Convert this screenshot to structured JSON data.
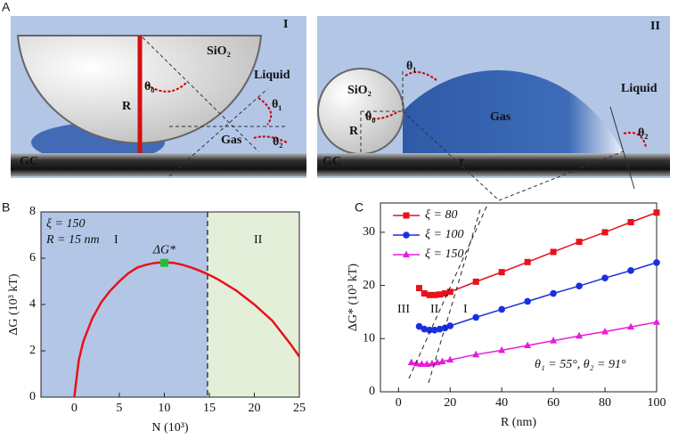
{
  "panel_a": {
    "label": "A",
    "left": {
      "numeral": "I",
      "solid": "SiO₂",
      "theta0": "θ₀",
      "radius": "R",
      "liquid": "Liquid",
      "theta1": "θ₁",
      "gas": "Gas",
      "theta2": "θ₂",
      "substrate": "GC"
    },
    "right": {
      "numeral": "II",
      "theta1": "θ₁",
      "solid": "SiO₂",
      "theta0": "θ₀",
      "radius": "R",
      "gas": "Gas",
      "bubble_radius": "r",
      "liquid": "Liquid",
      "theta2": "θ₂",
      "substrate": "GC"
    }
  },
  "chart_data": [
    {
      "type": "line",
      "panel": "B",
      "xlabel": "N (10³)",
      "ylabel": "ΔG (10³ kT)",
      "annotations": {
        "xi": "ξ = 150",
        "radius": "R = 15 nm",
        "region1": "I",
        "region2": "II"
      },
      "divider_x": 14.8,
      "region_colors": [
        "#b3c6e6",
        "#e3efd9"
      ],
      "xlim": [
        -3.7,
        25
      ],
      "xticks": [
        0,
        5,
        10,
        15,
        20,
        25
      ],
      "ylim": [
        0,
        8
      ],
      "yticks": [
        0,
        2,
        4,
        6,
        8
      ],
      "series": [
        {
          "color": "#e8111a",
          "x": [
            0,
            0.5,
            1,
            2,
            3,
            4,
            5,
            6,
            7,
            8,
            9,
            10,
            11,
            12,
            13,
            14,
            15,
            16,
            18,
            20,
            22,
            24,
            25
          ],
          "values": [
            0,
            1.6,
            2.4,
            3.4,
            4.1,
            4.6,
            5.0,
            5.35,
            5.6,
            5.72,
            5.8,
            5.82,
            5.8,
            5.72,
            5.6,
            5.45,
            5.28,
            5.08,
            4.6,
            4.0,
            3.3,
            2.3,
            1.75
          ]
        }
      ],
      "marker": {
        "x": 10,
        "y": 5.8,
        "label": "ΔG*",
        "color": "#22c03a"
      }
    },
    {
      "type": "line",
      "panel": "C",
      "xlabel": "R (nm)",
      "ylabel": "ΔG* (10³ kT)",
      "annotations": {
        "region3": "III",
        "region2": "II",
        "region1": "I",
        "angles": "θ₁ = 55°, θ₂ = 91°"
      },
      "xlim": [
        -7,
        100
      ],
      "xticks": [
        0,
        20,
        40,
        60,
        80,
        100
      ],
      "ylim": [
        0,
        35.5
      ],
      "yticks": [
        0,
        10,
        20,
        30
      ],
      "series": [
        {
          "name": "ξ = 80",
          "color": "#e8111a",
          "marker": "square",
          "x": [
            8,
            10,
            12,
            14,
            16,
            18,
            20,
            30,
            40,
            50,
            60,
            70,
            80,
            90,
            100
          ],
          "values": [
            19.5,
            18.5,
            18.2,
            18.2,
            18.3,
            18.5,
            18.8,
            20.7,
            22.5,
            24.4,
            26.3,
            28.2,
            30.0,
            31.9,
            33.7
          ]
        },
        {
          "name": "ξ = 100",
          "color": "#1a2fe0",
          "marker": "circle",
          "x": [
            8,
            10,
            12,
            14,
            16,
            18,
            20,
            30,
            40,
            50,
            60,
            70,
            80,
            90,
            100
          ],
          "values": [
            12.3,
            11.8,
            11.6,
            11.6,
            11.8,
            12.0,
            12.4,
            14.0,
            15.5,
            17.0,
            18.5,
            19.9,
            21.4,
            22.8,
            24.3
          ]
        },
        {
          "name": "ξ = 150",
          "color": "#e81ae0",
          "marker": "triangle",
          "x": [
            5,
            7,
            9,
            11,
            13,
            15,
            17,
            20,
            30,
            40,
            50,
            60,
            70,
            80,
            90,
            100
          ],
          "values": [
            5.5,
            5.3,
            5.2,
            5.2,
            5.3,
            5.5,
            5.7,
            6.0,
            7.0,
            7.8,
            8.7,
            9.6,
            10.5,
            11.3,
            12.2,
            13.1
          ]
        }
      ]
    }
  ]
}
